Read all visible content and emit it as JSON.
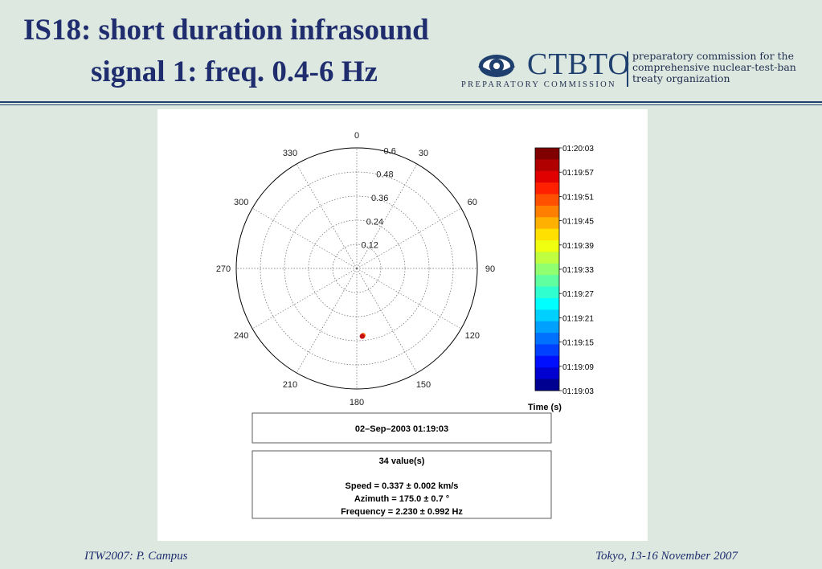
{
  "slide": {
    "title_line1": "IS18: short duration infrasound",
    "title_line2": "signal 1: freq. 0.4-6 Hz",
    "footer_left": "ITW2007: P. Campus",
    "footer_right": "Tokyo, 13-16 November 2007"
  },
  "logo": {
    "name": "CTBTO",
    "subtitle": "PREPARATORY COMMISSION",
    "tagline": [
      "preparatory commission for the",
      "comprehensive nuclear-test-ban",
      "treaty organization"
    ],
    "icon": "ctbto-eye-icon",
    "color": "#1f3f6f"
  },
  "chart_data": {
    "type": "scatter",
    "projection": "polar",
    "angle_ticks": [
      "0",
      "30",
      "60",
      "90",
      "120",
      "150",
      "180",
      "210",
      "240",
      "270",
      "300",
      "330"
    ],
    "radial_ticks": [
      0.12,
      0.24,
      0.36,
      0.48,
      0.6
    ],
    "radial_tick_labels": [
      "0.12",
      "0.24",
      "0.36",
      "0.48",
      "0.6"
    ],
    "rmax": 0.6,
    "grid": true,
    "points": [
      {
        "azimuth": 175.0,
        "speed": 0.337,
        "color": "#e0201a"
      },
      {
        "azimuth": 174.6,
        "speed": 0.335,
        "color": "#f07010"
      },
      {
        "azimuth": 175.4,
        "speed": 0.339,
        "color": "#c81010"
      }
    ],
    "colorbar": {
      "label": "Time (s)",
      "ticks": [
        "01:20:03",
        "01:19:57",
        "01:19:51",
        "01:19:45",
        "01:19:39",
        "01:19:33",
        "01:19:27",
        "01:19:21",
        "01:19:15",
        "01:19:09",
        "01:19:03"
      ],
      "colors": [
        "#800000",
        "#b00000",
        "#e00000",
        "#ff2000",
        "#ff5000",
        "#ff8000",
        "#ffb000",
        "#ffe000",
        "#f0ff10",
        "#c0ff40",
        "#90ff70",
        "#60ffa0",
        "#30ffd0",
        "#00ffff",
        "#00d0ff",
        "#00a0ff",
        "#0070ff",
        "#0040ff",
        "#0010ff",
        "#0000d0",
        "#000090"
      ]
    },
    "info": {
      "date": "02–Sep–2003 01:19:03",
      "count": "34 value(s)",
      "speed": "Speed = 0.337 ± 0.002 km/s",
      "azimuth": "Azimuth = 175.0 ± 0.7 °",
      "frequency": "Frequency = 2.230 ± 0.992 Hz"
    }
  }
}
